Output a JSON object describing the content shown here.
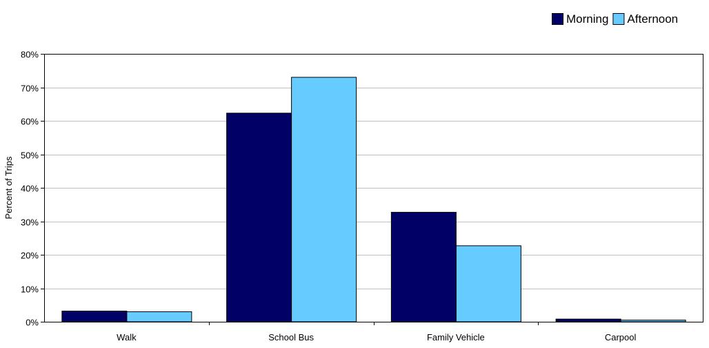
{
  "chart_data": {
    "type": "bar",
    "title": "",
    "xlabel": "",
    "ylabel": "Percent of Trips",
    "ylim": [
      0,
      80
    ],
    "ytick_step": 10,
    "ytick_suffix": "%",
    "grid": true,
    "legend_position": "top-right",
    "categories": [
      "Walk",
      "School Bus",
      "Family Vehicle",
      "Carpool"
    ],
    "series": [
      {
        "name": "Morning",
        "color": "#000066",
        "values": [
          3.2,
          62.3,
          32.7,
          0.8
        ]
      },
      {
        "name": "Afternoon",
        "color": "#66ccff",
        "values": [
          3.0,
          73.0,
          22.7,
          0.5
        ]
      }
    ]
  }
}
